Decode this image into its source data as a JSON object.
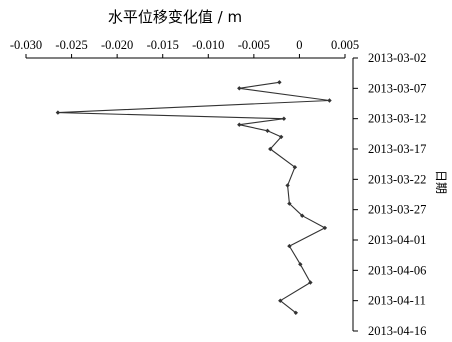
{
  "chart_data": {
    "type": "line",
    "title": "",
    "xlabel": "水平位移变化值 / m",
    "ylabel": "日期",
    "x_axis_position": "top",
    "y_axis_position": "right",
    "y_reversed": true,
    "xlim": [
      -0.03,
      0.005
    ],
    "x_ticks": [
      "-0.030",
      "-0.025",
      "-0.020",
      "-0.015",
      "-0.010",
      "-0.005",
      "0",
      "0.005"
    ],
    "ylim": [
      "2013-03-02",
      "2013-04-16"
    ],
    "y_ticks": [
      "2013-03-02",
      "2013-03-07",
      "2013-03-12",
      "2013-03-17",
      "2013-03-22",
      "2013-03-27",
      "2013-04-01",
      "2013-04-06",
      "2013-04-11",
      "2013-04-16"
    ],
    "grid": false,
    "legend": "none",
    "series": [
      {
        "color": "#333333",
        "marker": "diamond",
        "points": [
          {
            "date": "2013-03-06",
            "x": -0.0022
          },
          {
            "date": "2013-03-07",
            "x": -0.0066
          },
          {
            "date": "2013-03-09",
            "x": 0.0033
          },
          {
            "date": "2013-03-11",
            "x": -0.0265
          },
          {
            "date": "2013-03-12",
            "x": -0.0017
          },
          {
            "date": "2013-03-13",
            "x": -0.0066
          },
          {
            "date": "2013-03-14",
            "x": -0.0035
          },
          {
            "date": "2013-03-15",
            "x": -0.002
          },
          {
            "date": "2013-03-17",
            "x": -0.0032
          },
          {
            "date": "2013-03-20",
            "x": -0.0005
          },
          {
            "date": "2013-03-23",
            "x": -0.0013
          },
          {
            "date": "2013-03-26",
            "x": -0.0011
          },
          {
            "date": "2013-03-28",
            "x": 0.0003
          },
          {
            "date": "2013-03-30",
            "x": 0.0028
          },
          {
            "date": "2013-04-02",
            "x": -0.0011
          },
          {
            "date": "2013-04-05",
            "x": 0.0001
          },
          {
            "date": "2013-04-08",
            "x": 0.0012
          },
          {
            "date": "2013-04-11",
            "x": -0.0021
          },
          {
            "date": "2013-04-13",
            "x": -0.0004
          }
        ]
      }
    ]
  }
}
